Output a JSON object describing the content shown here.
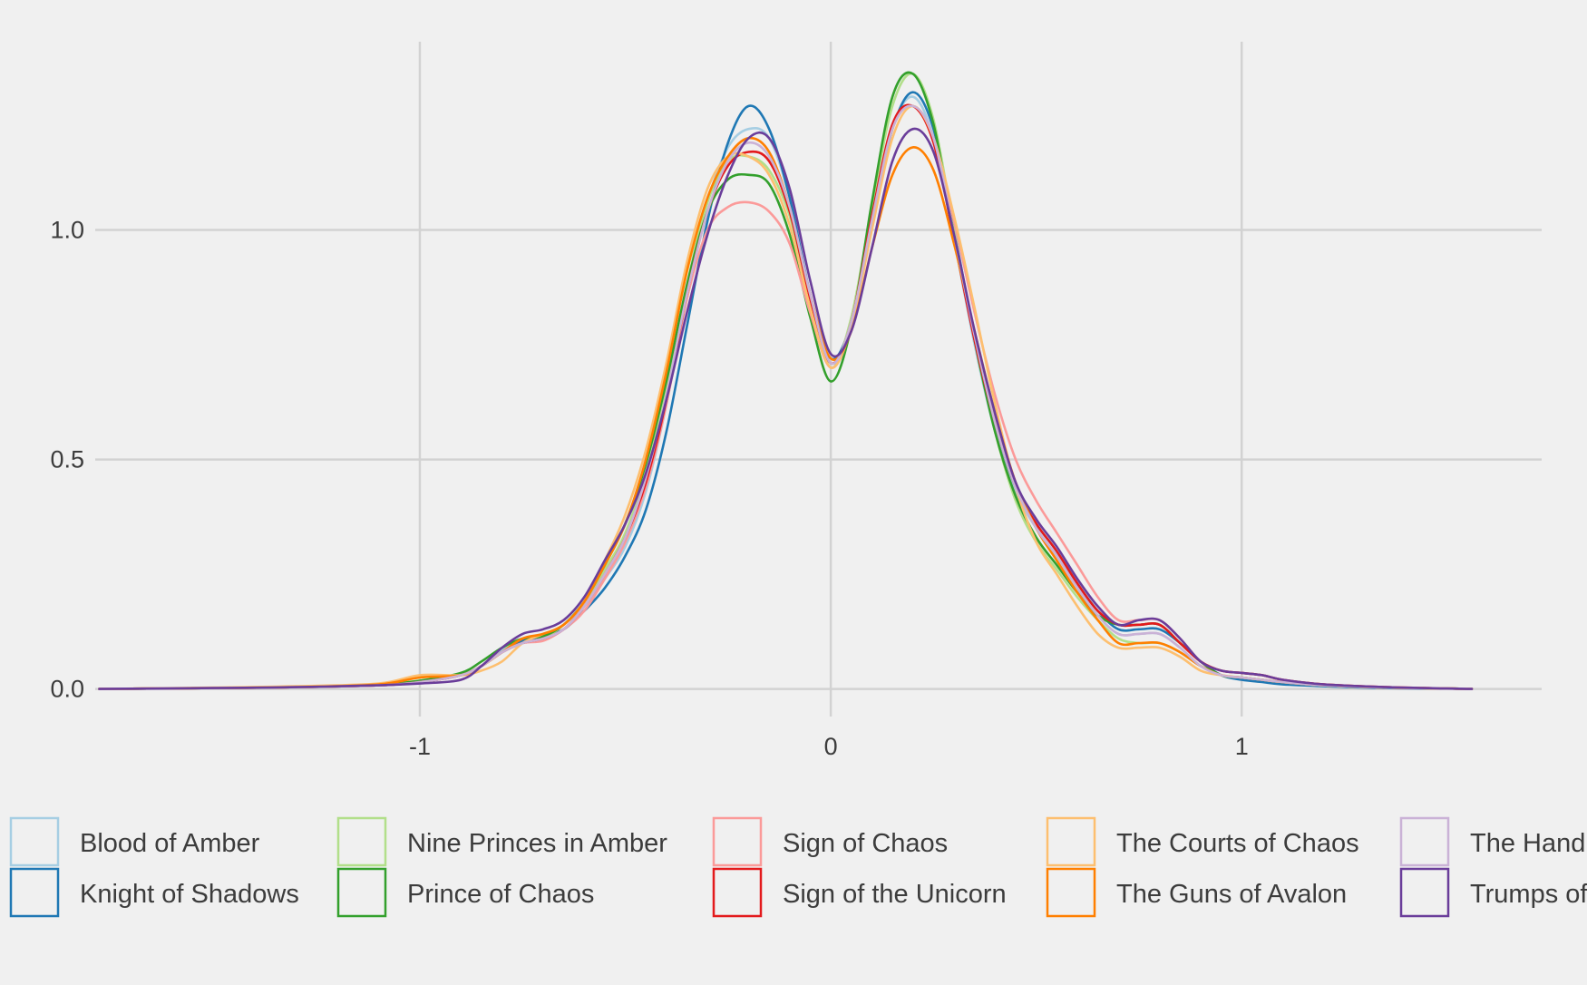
{
  "chart_data": {
    "type": "line",
    "title": "",
    "xlabel": "",
    "ylabel": "",
    "xlim": [
      -1.79,
      1.73
    ],
    "ylim": [
      -0.06,
      1.41
    ],
    "x_ticks": [
      -1,
      0,
      1
    ],
    "x_tick_labels": [
      "-1",
      "0",
      "1"
    ],
    "y_ticks": [
      0.0,
      0.5,
      1.0
    ],
    "y_tick_labels": [
      "0.0",
      "0.5",
      "1.0"
    ],
    "grid": true,
    "legend_position": "bottom",
    "x": [
      -1.78,
      -1.5,
      -1.3,
      -1.1,
      -1.0,
      -0.9,
      -0.85,
      -0.8,
      -0.75,
      -0.7,
      -0.65,
      -0.6,
      -0.55,
      -0.5,
      -0.45,
      -0.4,
      -0.35,
      -0.3,
      -0.25,
      -0.2,
      -0.15,
      -0.1,
      -0.05,
      0.0,
      0.05,
      0.1,
      0.15,
      0.2,
      0.25,
      0.3,
      0.35,
      0.4,
      0.45,
      0.5,
      0.55,
      0.6,
      0.65,
      0.7,
      0.75,
      0.8,
      0.85,
      0.9,
      0.95,
      1.0,
      1.05,
      1.1,
      1.2,
      1.35,
      1.5,
      1.56
    ],
    "series": [
      {
        "name": "Blood of Amber",
        "color": "#a6cee3",
        "values": [
          0.0,
          0.002,
          0.004,
          0.008,
          0.015,
          0.03,
          0.05,
          0.085,
          0.105,
          0.11,
          0.14,
          0.18,
          0.24,
          0.31,
          0.43,
          0.62,
          0.86,
          1.06,
          1.18,
          1.22,
          1.2,
          1.07,
          0.86,
          0.71,
          0.8,
          1.02,
          1.22,
          1.29,
          1.2,
          0.98,
          0.75,
          0.56,
          0.43,
          0.35,
          0.29,
          0.22,
          0.16,
          0.12,
          0.12,
          0.12,
          0.09,
          0.05,
          0.03,
          0.025,
          0.02,
          0.015,
          0.008,
          0.003,
          0.001,
          0.0
        ]
      },
      {
        "name": "Knight of Shadows",
        "color": "#1f78b4",
        "values": [
          0.0,
          0.002,
          0.004,
          0.008,
          0.015,
          0.03,
          0.05,
          0.08,
          0.105,
          0.115,
          0.13,
          0.17,
          0.22,
          0.29,
          0.39,
          0.56,
          0.79,
          1.02,
          1.19,
          1.27,
          1.22,
          1.07,
          0.86,
          0.72,
          0.8,
          1.02,
          1.22,
          1.3,
          1.22,
          1.0,
          0.77,
          0.58,
          0.44,
          0.36,
          0.3,
          0.23,
          0.17,
          0.13,
          0.13,
          0.13,
          0.1,
          0.06,
          0.03,
          0.02,
          0.015,
          0.01,
          0.006,
          0.002,
          0.001,
          0.0
        ]
      },
      {
        "name": "Nine Princes in Amber",
        "color": "#b2df8a",
        "values": [
          0.0,
          0.002,
          0.005,
          0.01,
          0.018,
          0.03,
          0.05,
          0.08,
          0.1,
          0.11,
          0.14,
          0.19,
          0.26,
          0.34,
          0.47,
          0.65,
          0.88,
          1.06,
          1.15,
          1.16,
          1.13,
          1.03,
          0.85,
          0.7,
          0.81,
          1.05,
          1.27,
          1.34,
          1.24,
          1.0,
          0.76,
          0.56,
          0.41,
          0.32,
          0.26,
          0.2,
          0.15,
          0.11,
          0.1,
          0.1,
          0.08,
          0.05,
          0.03,
          0.025,
          0.02,
          0.015,
          0.008,
          0.003,
          0.001,
          0.0
        ]
      },
      {
        "name": "Prince of Chaos",
        "color": "#33a02c",
        "values": [
          0.0,
          0.002,
          0.005,
          0.01,
          0.018,
          0.035,
          0.06,
          0.09,
          0.11,
          0.115,
          0.14,
          0.19,
          0.27,
          0.36,
          0.49,
          0.67,
          0.88,
          1.04,
          1.11,
          1.12,
          1.1,
          0.99,
          0.81,
          0.67,
          0.79,
          1.06,
          1.29,
          1.34,
          1.23,
          0.99,
          0.76,
          0.56,
          0.42,
          0.33,
          0.27,
          0.21,
          0.16,
          0.14,
          0.14,
          0.14,
          0.1,
          0.06,
          0.03,
          0.025,
          0.02,
          0.015,
          0.008,
          0.003,
          0.001,
          0.0
        ]
      },
      {
        "name": "Sign of Chaos",
        "color": "#fb9a99",
        "values": [
          0.0,
          0.002,
          0.004,
          0.008,
          0.015,
          0.03,
          0.05,
          0.08,
          0.1,
          0.105,
          0.13,
          0.17,
          0.24,
          0.32,
          0.44,
          0.62,
          0.85,
          1.0,
          1.05,
          1.06,
          1.04,
          0.97,
          0.82,
          0.7,
          0.79,
          1.02,
          1.22,
          1.27,
          1.2,
          1.02,
          0.82,
          0.64,
          0.5,
          0.41,
          0.34,
          0.27,
          0.2,
          0.15,
          0.15,
          0.15,
          0.11,
          0.06,
          0.04,
          0.035,
          0.03,
          0.02,
          0.01,
          0.004,
          0.001,
          0.0
        ]
      },
      {
        "name": "Sign of the Unicorn",
        "color": "#e31a1c",
        "values": [
          0.0,
          0.002,
          0.004,
          0.008,
          0.015,
          0.03,
          0.05,
          0.08,
          0.1,
          0.11,
          0.13,
          0.18,
          0.25,
          0.33,
          0.45,
          0.63,
          0.86,
          1.04,
          1.14,
          1.17,
          1.15,
          1.04,
          0.85,
          0.71,
          0.8,
          1.03,
          1.23,
          1.27,
          1.19,
          0.98,
          0.76,
          0.58,
          0.44,
          0.36,
          0.3,
          0.23,
          0.17,
          0.14,
          0.14,
          0.14,
          0.1,
          0.06,
          0.04,
          0.035,
          0.03,
          0.02,
          0.01,
          0.004,
          0.001,
          0.0
        ]
      },
      {
        "name": "The Courts of Chaos",
        "color": "#fdbf6f",
        "values": [
          0.0,
          0.003,
          0.006,
          0.012,
          0.03,
          0.03,
          0.04,
          0.06,
          0.1,
          0.12,
          0.14,
          0.19,
          0.28,
          0.38,
          0.52,
          0.71,
          0.93,
          1.09,
          1.16,
          1.16,
          1.12,
          1.01,
          0.83,
          0.7,
          0.79,
          1.0,
          1.2,
          1.27,
          1.2,
          1.03,
          0.83,
          0.62,
          0.44,
          0.32,
          0.25,
          0.18,
          0.12,
          0.09,
          0.09,
          0.09,
          0.07,
          0.04,
          0.03,
          0.025,
          0.02,
          0.015,
          0.008,
          0.003,
          0.001,
          0.0
        ]
      },
      {
        "name": "The Guns of Avalon",
        "color": "#ff7f00",
        "values": [
          0.0,
          0.002,
          0.004,
          0.01,
          0.025,
          0.03,
          0.05,
          0.08,
          0.11,
          0.12,
          0.14,
          0.19,
          0.27,
          0.36,
          0.5,
          0.69,
          0.91,
          1.07,
          1.16,
          1.2,
          1.17,
          1.05,
          0.86,
          0.72,
          0.78,
          0.96,
          1.12,
          1.18,
          1.13,
          0.97,
          0.78,
          0.6,
          0.45,
          0.35,
          0.28,
          0.21,
          0.15,
          0.1,
          0.1,
          0.1,
          0.08,
          0.05,
          0.03,
          0.025,
          0.02,
          0.015,
          0.008,
          0.003,
          0.001,
          0.0
        ]
      },
      {
        "name": "The Hand of Oberon",
        "color": "#cab2d6",
        "values": [
          0.0,
          0.002,
          0.004,
          0.008,
          0.015,
          0.03,
          0.05,
          0.08,
          0.1,
          0.11,
          0.13,
          0.18,
          0.25,
          0.33,
          0.46,
          0.64,
          0.86,
          1.04,
          1.15,
          1.19,
          1.16,
          1.05,
          0.86,
          0.71,
          0.8,
          1.02,
          1.22,
          1.27,
          1.2,
          0.99,
          0.77,
          0.58,
          0.44,
          0.35,
          0.29,
          0.22,
          0.16,
          0.12,
          0.12,
          0.12,
          0.09,
          0.05,
          0.03,
          0.025,
          0.02,
          0.015,
          0.008,
          0.003,
          0.001,
          0.0
        ]
      },
      {
        "name": "Trumps of Doom",
        "color": "#6a3d9a",
        "values": [
          0.0,
          0.002,
          0.004,
          0.008,
          0.012,
          0.02,
          0.05,
          0.09,
          0.12,
          0.13,
          0.15,
          0.2,
          0.28,
          0.36,
          0.47,
          0.63,
          0.82,
          0.99,
          1.12,
          1.2,
          1.2,
          1.09,
          0.89,
          0.73,
          0.78,
          0.96,
          1.15,
          1.22,
          1.17,
          0.99,
          0.78,
          0.6,
          0.45,
          0.37,
          0.31,
          0.24,
          0.18,
          0.14,
          0.15,
          0.15,
          0.11,
          0.06,
          0.04,
          0.035,
          0.03,
          0.02,
          0.01,
          0.004,
          0.001,
          0.0
        ]
      }
    ]
  }
}
